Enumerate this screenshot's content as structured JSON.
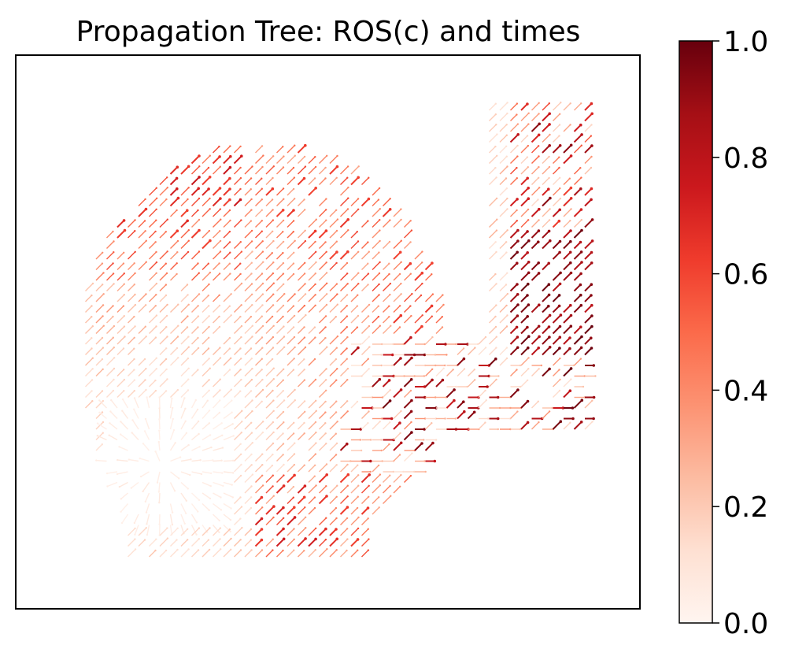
{
  "chart_data": {
    "type": "quiver",
    "title": "Propagation Tree: ROS(c) and times",
    "xlabel": "",
    "ylabel": "",
    "axes_ticks": "none",
    "colormap": "Reds",
    "colorbar": {
      "range": [
        0.0,
        1.0
      ],
      "ticks": [
        0.0,
        0.2,
        0.4,
        0.6,
        0.8,
        1.0
      ],
      "tick_labels": [
        "0.0",
        "0.2",
        "0.4",
        "0.6",
        "0.8",
        "1.0"
      ],
      "placement": "right"
    },
    "description_regions": [
      {
        "region": "upper-left lobe",
        "direction": "northeast",
        "value_range": [
          0.1,
          0.45
        ]
      },
      {
        "region": "center",
        "direction": "mixed",
        "value_range": [
          0.0,
          0.15
        ]
      },
      {
        "region": "right arm",
        "direction": "northeast",
        "value_range": [
          0.8,
          1.0
        ]
      },
      {
        "region": "lower band",
        "direction": "northeast",
        "value_range": [
          0.4,
          1.0
        ]
      }
    ]
  },
  "colors": {
    "frame": "#000000",
    "cmap_low": "#fff5f0",
    "cmap_mid": "#fb6a4a",
    "cmap_high": "#67000d"
  }
}
